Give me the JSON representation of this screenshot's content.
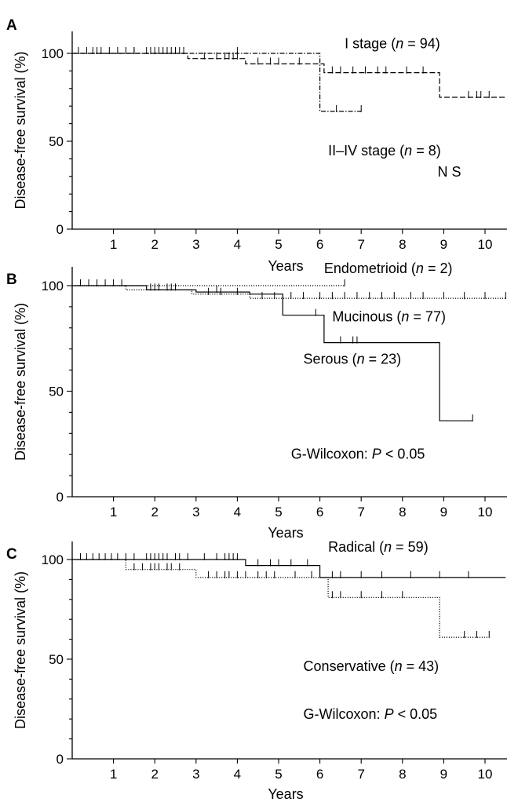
{
  "chart_data": [
    {
      "type": "line",
      "subtype": "kaplan-meier",
      "panel_label": "A",
      "xlabel": "Years",
      "ylabel": "Disease-free survival (%)",
      "xlim": [
        0,
        10.5
      ],
      "ylim": [
        0,
        100
      ],
      "x_ticks": [
        1,
        2,
        3,
        4,
        5,
        6,
        7,
        8,
        9,
        10
      ],
      "y_ticks": [
        0,
        50,
        100
      ],
      "grid": false,
      "annotations": [
        {
          "text": "N S",
          "x": 8.85,
          "y": 30
        }
      ],
      "series": [
        {
          "name": "I stage (n=94)",
          "label_prefix": "I stage (",
          "label_n": "n",
          "label_suffix": " = 94)",
          "style": "dashed",
          "steps": [
            [
              0,
              100
            ],
            [
              2.8,
              100
            ],
            [
              2.8,
              97
            ],
            [
              4.2,
              97
            ],
            [
              4.2,
              94
            ],
            [
              6.1,
              94
            ],
            [
              6.1,
              89
            ],
            [
              8.9,
              89
            ],
            [
              8.9,
              75
            ],
            [
              10.5,
              75
            ]
          ],
          "censor_x": [
            0.15,
            0.35,
            0.5,
            0.7,
            0.9,
            1.1,
            1.3,
            1.5,
            1.8,
            1.9,
            2.0,
            2.1,
            2.2,
            2.3,
            2.4,
            2.5,
            2.6,
            3.2,
            3.5,
            3.7,
            3.8,
            3.9,
            4.0,
            4.5,
            4.8,
            5.0,
            5.5,
            6.3,
            6.5,
            6.8,
            7.1,
            7.4,
            7.6,
            8.1,
            8.5,
            9.6,
            9.8,
            9.9,
            10.1
          ]
        },
        {
          "name": "II–IV stage (n=8)",
          "label_prefix": "II–IV stage (",
          "label_n": "n",
          "label_suffix": " = 8)",
          "style": "dashdot",
          "steps": [
            [
              0,
              100
            ],
            [
              6.0,
              100
            ],
            [
              6.0,
              67
            ],
            [
              7.0,
              67
            ]
          ],
          "censor_x": [
            0.6,
            1.5,
            2.7,
            4.0,
            6.4,
            7.0
          ]
        }
      ],
      "series_labels": [
        {
          "series": 0,
          "x": 6.6,
          "y": 103
        },
        {
          "series": 1,
          "x": 6.2,
          "y": 42
        }
      ]
    },
    {
      "type": "line",
      "subtype": "kaplan-meier",
      "panel_label": "B",
      "xlabel": "Years",
      "ylabel": "Disease-free survival (%)",
      "xlim": [
        0,
        10.8
      ],
      "ylim": [
        0,
        100
      ],
      "x_ticks": [
        1,
        2,
        3,
        4,
        5,
        6,
        7,
        8,
        9,
        10
      ],
      "y_ticks": [
        0,
        50,
        100
      ],
      "grid": false,
      "annotations": [
        {
          "text": "G-Wilcoxon: ",
          "italic_part": "P",
          "tail": " < 0.05",
          "x": 5.3,
          "y": 18
        }
      ],
      "series": [
        {
          "name": "Endometrioid (n=2)",
          "label_prefix": "Endometrioid (",
          "label_n": "n",
          "label_suffix": " = 2)",
          "style": "dotted",
          "steps": [
            [
              0,
              100
            ],
            [
              6.6,
              100
            ]
          ],
          "censor_x": [
            1.2,
            6.6
          ]
        },
        {
          "name": "Mucinous (n=77)",
          "label_prefix": "Mucinous (",
          "label_n": "n",
          "label_suffix": " = 77)",
          "style": "dotted",
          "steps": [
            [
              0,
              100
            ],
            [
              1.3,
              100
            ],
            [
              1.3,
              98
            ],
            [
              2.9,
              98
            ],
            [
              2.9,
              96
            ],
            [
              4.3,
              96
            ],
            [
              4.3,
              94
            ],
            [
              10.5,
              94
            ]
          ],
          "censor_x": [
            0.2,
            0.4,
            0.6,
            0.8,
            1.0,
            1.9,
            2.1,
            2.4,
            3.3,
            3.6,
            4.0,
            4.6,
            4.9,
            5.3,
            5.6,
            6.0,
            6.3,
            6.6,
            6.9,
            7.2,
            7.5,
            7.8,
            8.2,
            8.5,
            9.0,
            9.5,
            10.0,
            10.5
          ]
        },
        {
          "name": "Serous (n=23)",
          "label_prefix": "Serous (",
          "label_n": "n",
          "label_suffix": " = 23)",
          "style": "solid",
          "steps": [
            [
              0,
              100
            ],
            [
              1.8,
              100
            ],
            [
              1.8,
              98
            ],
            [
              3.0,
              98
            ],
            [
              3.0,
              97
            ],
            [
              4.3,
              97
            ],
            [
              4.3,
              96
            ],
            [
              5.1,
              96
            ],
            [
              5.1,
              86
            ],
            [
              6.1,
              86
            ],
            [
              6.1,
              73
            ],
            [
              8.9,
              73
            ],
            [
              8.9,
              36
            ],
            [
              9.7,
              36
            ]
          ],
          "censor_x": [
            2.0,
            2.3,
            2.5,
            3.5,
            5.9,
            6.5,
            6.8,
            6.9,
            9.7
          ]
        }
      ],
      "series_labels": [
        {
          "series": 0,
          "x": 6.1,
          "y": 106
        },
        {
          "series": 1,
          "x": 6.3,
          "y": 83
        },
        {
          "series": 2,
          "x": 5.6,
          "y": 63
        }
      ]
    },
    {
      "type": "line",
      "subtype": "kaplan-meier",
      "panel_label": "C",
      "xlabel": "Years",
      "ylabel": "Disease-free survival (%)",
      "xlim": [
        0,
        10.5
      ],
      "ylim": [
        0,
        100
      ],
      "x_ticks": [
        1,
        2,
        3,
        4,
        5,
        6,
        7,
        8,
        9,
        10
      ],
      "y_ticks": [
        0,
        50,
        100
      ],
      "grid": false,
      "annotations": [
        {
          "text": "G-Wilcoxon: ",
          "italic_part": "P",
          "tail": " < 0.05",
          "x": 5.6,
          "y": 20
        }
      ],
      "series": [
        {
          "name": "Radical (n=59)",
          "label_prefix": "Radical (",
          "label_n": "n",
          "label_suffix": " = 59)",
          "style": "solid",
          "steps": [
            [
              0,
              100
            ],
            [
              4.2,
              100
            ],
            [
              4.2,
              97
            ],
            [
              6.0,
              97
            ],
            [
              6.0,
              91
            ],
            [
              10.5,
              91
            ]
          ],
          "censor_x": [
            0.2,
            0.35,
            0.5,
            0.65,
            0.8,
            0.95,
            1.1,
            1.3,
            1.5,
            1.8,
            1.9,
            2.0,
            2.1,
            2.2,
            2.3,
            2.5,
            2.6,
            2.8,
            3.2,
            3.5,
            3.7,
            3.8,
            3.9,
            4.0,
            4.5,
            4.8,
            5.0,
            5.3,
            5.7,
            6.3,
            6.5,
            7.0,
            7.5,
            8.2,
            8.9,
            9.6
          ]
        },
        {
          "name": "Conservative (n=43)",
          "label_prefix": "Conservative (",
          "label_n": "n",
          "label_suffix": " = 43)",
          "style": "dotted",
          "steps": [
            [
              0,
              100
            ],
            [
              1.3,
              100
            ],
            [
              1.3,
              95
            ],
            [
              3.0,
              95
            ],
            [
              3.0,
              91
            ],
            [
              6.2,
              91
            ],
            [
              6.2,
              81
            ],
            [
              8.9,
              81
            ],
            [
              8.9,
              61
            ],
            [
              10.1,
              61
            ]
          ],
          "censor_x": [
            1.5,
            1.7,
            1.9,
            2.0,
            2.1,
            2.3,
            2.4,
            2.6,
            3.3,
            3.5,
            3.7,
            3.8,
            4.0,
            4.2,
            4.5,
            4.7,
            4.9,
            5.4,
            5.8,
            6.3,
            6.5,
            7.0,
            7.5,
            8.0,
            9.5,
            9.8,
            10.1
          ]
        }
      ],
      "series_labels": [
        {
          "series": 0,
          "x": 6.2,
          "y": 104
        },
        {
          "series": 1,
          "x": 5.6,
          "y": 44
        }
      ]
    }
  ]
}
